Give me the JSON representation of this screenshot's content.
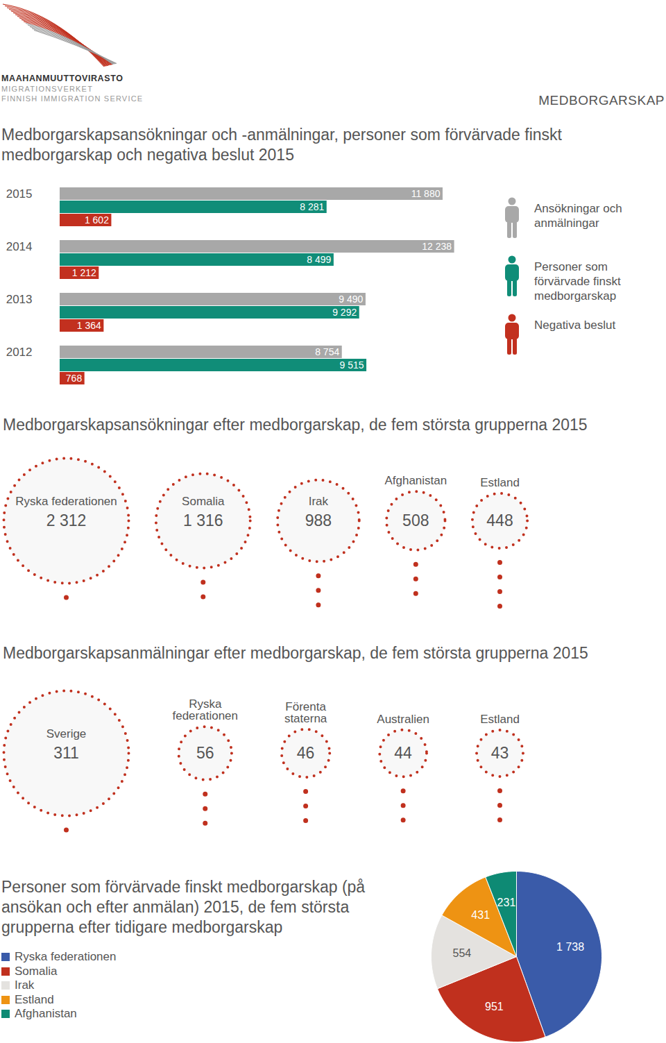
{
  "header": {
    "logo": [
      "MAAHANMUUTTOVIRASTO",
      "MIGRATIONSVERKET",
      "FINNISH IMMIGRATION SERVICE"
    ],
    "section": "MEDBORGARSKAP"
  },
  "chart_data": [
    {
      "type": "bar",
      "title": "Medborgarskapsansökningar och -anmälningar, personer som förvärvade finskt medborgarskap och negativa beslut 2015",
      "orientation": "horizontal",
      "categories": [
        "2015",
        "2014",
        "2013",
        "2012"
      ],
      "series": [
        {
          "name": "Ansökningar och anmälningar",
          "color": "#a8a8a8",
          "values": [
            11880,
            12238,
            9490,
            8754
          ],
          "value_labels": [
            "11 880",
            "12 238",
            "9 490",
            "8 754"
          ]
        },
        {
          "name": "Personer som förvärvade finskt medborgarskap",
          "color": "#108d78",
          "values": [
            8281,
            8499,
            9292,
            9515
          ],
          "value_labels": [
            "8 281",
            "8 499",
            "9 292",
            "9 515"
          ]
        },
        {
          "name": "Negativa beslut",
          "color": "#c2301f",
          "values": [
            1602,
            1212,
            1364,
            768
          ],
          "value_labels": [
            "1 602",
            "1 212",
            "1 364",
            "768"
          ]
        }
      ],
      "xlim": [
        0,
        13000
      ],
      "tick_labels": "y",
      "data_labels": true,
      "legend": "right"
    },
    {
      "type": "bubble",
      "title": "Medborgarskapsansökningar efter medborgarskap, de fem största grupperna 2015",
      "categories": [
        "Ryska federationen",
        "Somalia",
        "Irak",
        "Afghanistan",
        "Estland"
      ],
      "values": [
        2312,
        1316,
        988,
        508,
        448
      ],
      "value_labels": [
        "2 312",
        "1 316",
        "988",
        "508",
        "448"
      ],
      "color": "#c0301e",
      "data_labels": true
    },
    {
      "type": "bubble",
      "title": "Medborgarskapsanmälningar efter medborgarskap, de fem största grupperna 2015",
      "categories": [
        "Sverige",
        "Ryska federationen",
        "Förenta staterna",
        "Australien",
        "Estland"
      ],
      "values": [
        311,
        56,
        46,
        44,
        43
      ],
      "value_labels": [
        "311",
        "56",
        "46",
        "44",
        "43"
      ],
      "color": "#c0301e",
      "data_labels": true
    },
    {
      "type": "pie",
      "title": "Personer som förvärvade finskt medborgarskap (på ansökan och efter anmälan) 2015, de fem största grupperna efter tidigare medborgarskap",
      "categories": [
        "Ryska federationen",
        "Somalia",
        "Irak",
        "Estland",
        "Afghanistan"
      ],
      "values": [
        1738,
        951,
        554,
        431,
        231
      ],
      "value_labels": [
        "1 738",
        "951",
        "554",
        "431",
        "231"
      ],
      "colors": [
        "#3a5ba9",
        "#c0301e",
        "#e4e2df",
        "#ee9313",
        "#0e8a74"
      ],
      "data_labels": true,
      "legend": "left"
    }
  ]
}
